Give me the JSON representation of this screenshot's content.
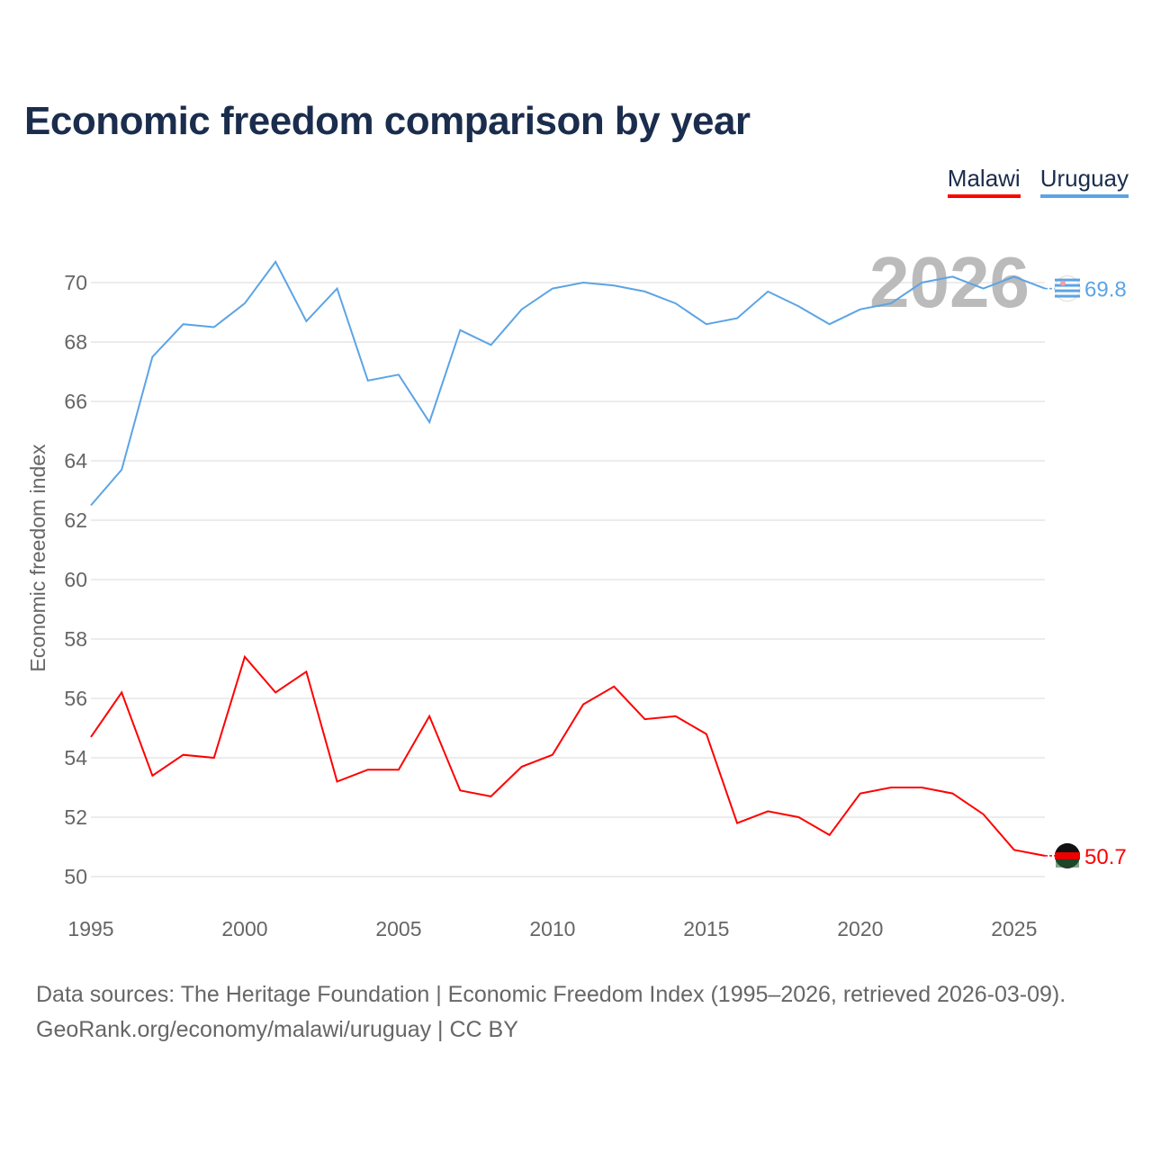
{
  "title": "Economic freedom comparison by year",
  "legend": [
    {
      "name": "Malawi",
      "color": "#ff0000"
    },
    {
      "name": "Uruguay",
      "color": "#5ba4e5"
    }
  ],
  "watermark_year": "2026",
  "footer": {
    "line1": "Data sources: The Heritage Foundation | Economic Freedom Index (1995–2026, retrieved 2026-03-09).",
    "line2": "GeoRank.org/economy/malawi/uruguay | CC BY"
  },
  "chart_data": {
    "type": "line",
    "title": "Economic freedom comparison by year",
    "xlabel": "",
    "ylabel": "Economic freedom index",
    "xlim": [
      1995,
      2026
    ],
    "ylim": [
      50,
      71
    ],
    "x_ticks": [
      "1995",
      "2000",
      "2005",
      "2010",
      "2015",
      "2020",
      "2025"
    ],
    "y_ticks": [
      "50",
      "52",
      "54",
      "56",
      "58",
      "60",
      "62",
      "64",
      "66",
      "68",
      "70"
    ],
    "grid": true,
    "legend_position": "top-right",
    "x": [
      1995,
      1996,
      1997,
      1998,
      1999,
      2000,
      2001,
      2002,
      2003,
      2004,
      2005,
      2006,
      2007,
      2008,
      2009,
      2010,
      2011,
      2012,
      2013,
      2014,
      2015,
      2016,
      2017,
      2018,
      2019,
      2020,
      2021,
      2022,
      2023,
      2024,
      2025,
      2026
    ],
    "series": [
      {
        "name": "Malawi",
        "color": "#ff0000",
        "end_label": "50.7",
        "values": [
          54.7,
          56.2,
          53.4,
          54.1,
          54.0,
          57.4,
          56.2,
          56.9,
          53.2,
          53.6,
          53.6,
          55.4,
          52.9,
          52.7,
          53.7,
          54.1,
          55.8,
          56.4,
          55.3,
          55.4,
          54.8,
          51.8,
          52.2,
          52.0,
          51.4,
          52.8,
          53.0,
          53.0,
          52.8,
          52.1,
          50.9,
          50.7
        ]
      },
      {
        "name": "Uruguay",
        "color": "#5ba4e5",
        "end_label": "69.8",
        "values": [
          62.5,
          63.7,
          67.5,
          68.6,
          68.5,
          69.3,
          70.7,
          68.7,
          69.8,
          66.7,
          66.9,
          65.3,
          68.4,
          67.9,
          69.1,
          69.8,
          70.0,
          69.9,
          69.7,
          69.3,
          68.6,
          68.8,
          69.7,
          69.2,
          68.6,
          69.1,
          69.3,
          70.0,
          70.2,
          69.8,
          70.2,
          69.8
        ]
      }
    ]
  }
}
